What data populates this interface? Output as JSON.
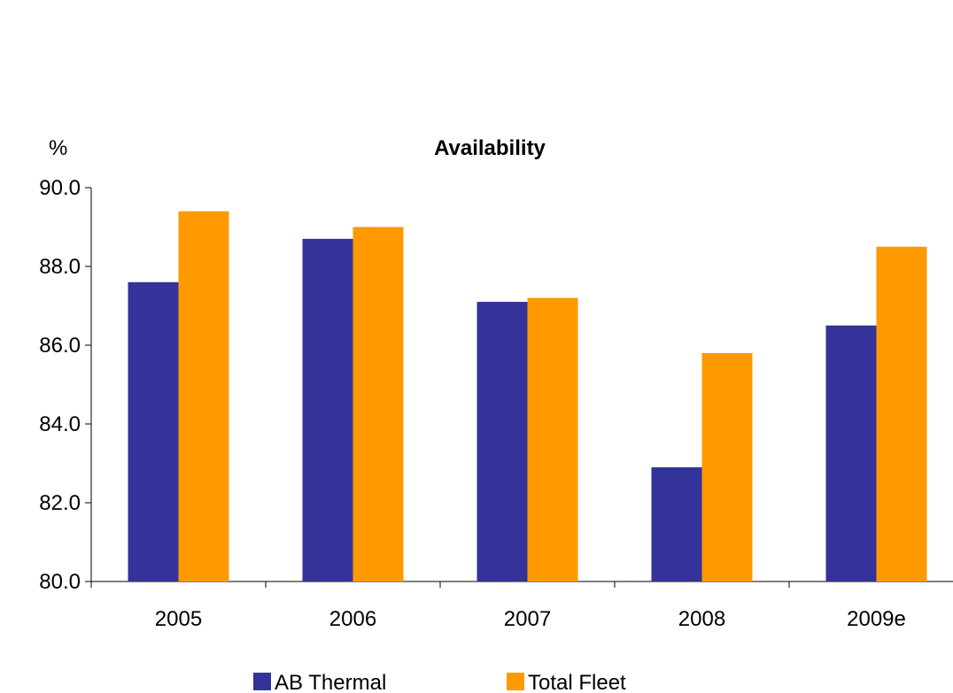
{
  "chart_data": {
    "type": "bar",
    "title": "Availability",
    "ylabel": "%",
    "xlabel": "",
    "categories": [
      "2005",
      "2006",
      "2007",
      "2008",
      "2009e"
    ],
    "series": [
      {
        "name": "AB Thermal",
        "color": "#333399",
        "values": [
          87.6,
          88.7,
          87.1,
          82.9,
          86.5
        ]
      },
      {
        "name": "Total Fleet",
        "color": "#FF9900",
        "values": [
          89.4,
          89.0,
          87.2,
          85.8,
          88.5
        ]
      }
    ],
    "ylim": [
      80,
      90
    ],
    "yticks": [
      "80.0",
      "82.0",
      "84.0",
      "86.0",
      "88.0",
      "90.0"
    ],
    "ytick_values": [
      80,
      82,
      84,
      86,
      88,
      90
    ],
    "grid": false,
    "legend_position": "bottom"
  }
}
